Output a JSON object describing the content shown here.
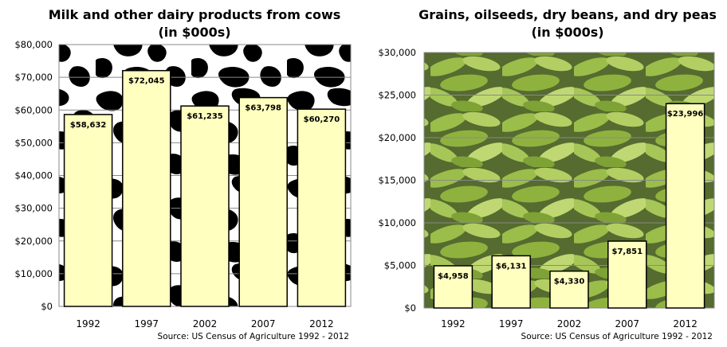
{
  "chart_data": [
    {
      "type": "bar",
      "title": "Milk and other dairy products from cows",
      "subtitle": "(in $000s)",
      "categories": [
        "1992",
        "1997",
        "2002",
        "2007",
        "2012"
      ],
      "values": [
        58632,
        72045,
        61235,
        63798,
        60270
      ],
      "data_labels": [
        "$58,632",
        "$72,045",
        "$61,235",
        "$63,798",
        "$60,270"
      ],
      "ylim": [
        0,
        80000
      ],
      "yticks": [
        "$0",
        "$10,000",
        "$20,000",
        "$30,000",
        "$40,000",
        "$50,000",
        "$60,000",
        "$70,000",
        "$80,000"
      ],
      "source": "Source: US Census of Agriculture 1992 - 2012",
      "background": "cow-spots",
      "bar_color": "#ffffc0",
      "grid": true
    },
    {
      "type": "bar",
      "title": "Grains, oilseeds, dry beans, and dry peas",
      "subtitle": "(in $000s)",
      "categories": [
        "1992",
        "1997",
        "2002",
        "2007",
        "2012"
      ],
      "values": [
        4958,
        6131,
        4330,
        7851,
        23996
      ],
      "data_labels": [
        "$4,958",
        "$6,131",
        "$4,330",
        "$7,851",
        "$23,996"
      ],
      "ylim": [
        0,
        30000
      ],
      "yticks": [
        "$0",
        "$5,000",
        "$10,000",
        "$15,000",
        "$20,000",
        "$25,000",
        "$30,000"
      ],
      "source": "Source: US Census of Agriculture 1992 - 2012",
      "background": "green-bean-pods",
      "bar_color": "#ffffc0",
      "grid": true
    }
  ]
}
